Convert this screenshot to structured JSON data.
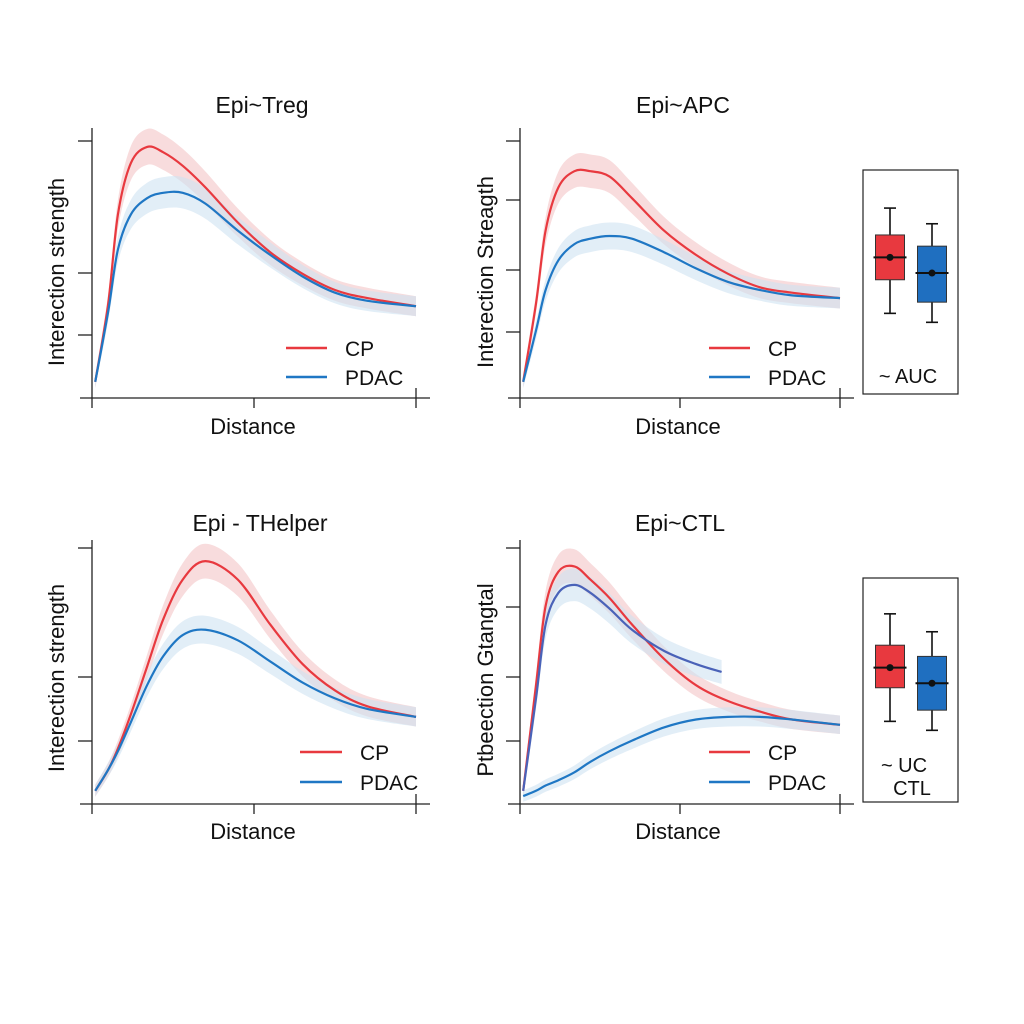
{
  "colors": {
    "cp": "#e8393f",
    "pdac": "#1f77c4",
    "pdac_alt": "#4a62b8",
    "cp_band": "#f4c4c6",
    "pdac_band": "#cfe3f2"
  },
  "chart_data": [
    {
      "type": "line",
      "title": "Epi~Treg",
      "xlabel": "Distance",
      "ylabel": "Interection strength",
      "grid": false,
      "legend": "bottom-right",
      "x": [
        0.01,
        0.05,
        0.08,
        0.12,
        0.17,
        0.22,
        0.28,
        0.35,
        0.45,
        0.55,
        0.65,
        0.75,
        0.85,
        1.0
      ],
      "series": [
        {
          "name": "CP",
          "color": "#e8393f",
          "values": [
            0.06,
            0.35,
            0.68,
            0.87,
            0.93,
            0.91,
            0.86,
            0.78,
            0.65,
            0.54,
            0.46,
            0.4,
            0.37,
            0.34
          ]
        },
        {
          "name": "PDAC",
          "color": "#1f77c4",
          "values": [
            0.06,
            0.32,
            0.55,
            0.68,
            0.74,
            0.76,
            0.76,
            0.72,
            0.62,
            0.53,
            0.45,
            0.39,
            0.36,
            0.34
          ]
        }
      ]
    },
    {
      "type": "line",
      "title": "Epi~APC",
      "xlabel": "Distance",
      "ylabel": "Interection Streagth",
      "grid": false,
      "legend": "bottom-right",
      "x": [
        0.01,
        0.05,
        0.08,
        0.12,
        0.17,
        0.22,
        0.28,
        0.35,
        0.45,
        0.55,
        0.65,
        0.75,
        0.85,
        1.0
      ],
      "series": [
        {
          "name": "CP",
          "color": "#e8393f",
          "values": [
            0.06,
            0.35,
            0.62,
            0.78,
            0.84,
            0.84,
            0.82,
            0.74,
            0.62,
            0.53,
            0.46,
            0.41,
            0.39,
            0.37
          ]
        },
        {
          "name": "PDAC",
          "color": "#1f77c4",
          "values": [
            0.06,
            0.25,
            0.4,
            0.51,
            0.57,
            0.59,
            0.6,
            0.59,
            0.54,
            0.48,
            0.43,
            0.4,
            0.38,
            0.37
          ]
        }
      ]
    },
    {
      "type": "line",
      "title": "Epi - THelper",
      "xlabel": "Distance",
      "ylabel": "Interection strength",
      "grid": false,
      "legend": "bottom-right",
      "x": [
        0.01,
        0.05,
        0.08,
        0.12,
        0.17,
        0.22,
        0.28,
        0.35,
        0.45,
        0.55,
        0.65,
        0.75,
        0.85,
        1.0
      ],
      "series": [
        {
          "name": "CP",
          "color": "#e8393f",
          "values": [
            0.05,
            0.13,
            0.21,
            0.34,
            0.52,
            0.7,
            0.85,
            0.92,
            0.85,
            0.68,
            0.53,
            0.43,
            0.37,
            0.33
          ]
        },
        {
          "name": "PDAC",
          "color": "#1f77c4",
          "values": [
            0.05,
            0.13,
            0.2,
            0.31,
            0.45,
            0.56,
            0.64,
            0.66,
            0.62,
            0.54,
            0.46,
            0.4,
            0.36,
            0.33
          ]
        }
      ]
    },
    {
      "type": "line",
      "title": "Epi~CTL",
      "xlabel": "Distance",
      "ylabel": "Ptbeection Gtangtal",
      "grid": false,
      "legend": "bottom-right",
      "x": [
        0.01,
        0.05,
        0.08,
        0.12,
        0.17,
        0.22,
        0.28,
        0.35,
        0.45,
        0.55,
        0.65,
        0.75,
        0.85,
        1.0
      ],
      "series": [
        {
          "name": "CP",
          "color": "#e8393f",
          "values": [
            0.05,
            0.45,
            0.75,
            0.88,
            0.9,
            0.85,
            0.78,
            0.68,
            0.55,
            0.45,
            0.39,
            0.35,
            0.32,
            0.3
          ]
        },
        {
          "name": "PDAC",
          "color": "#1f77c4",
          "values": [
            0.03,
            0.05,
            0.07,
            0.09,
            0.12,
            0.16,
            0.2,
            0.24,
            0.29,
            0.32,
            0.33,
            0.33,
            0.32,
            0.3
          ]
        },
        {
          "color": "#4a62b8",
          "x": [
            0.01,
            0.05,
            0.08,
            0.12,
            0.17,
            0.22,
            0.28,
            0.35,
            0.45,
            0.55,
            0.63
          ],
          "values": [
            0.05,
            0.4,
            0.68,
            0.8,
            0.83,
            0.8,
            0.74,
            0.66,
            0.58,
            0.53,
            0.5
          ]
        }
      ]
    },
    {
      "type": "box",
      "label": "~ AUC",
      "boxes": [
        {
          "color": "#e8393f",
          "whislo": 36,
          "q1": 51,
          "median": 61,
          "q3": 71,
          "whishi": 83
        },
        {
          "color": "#1f6fc0",
          "whislo": 32,
          "q1": 41,
          "median": 54,
          "q3": 66,
          "whishi": 76
        }
      ]
    },
    {
      "type": "box",
      "label": "~  UC",
      "label2": "CTL",
      "boxes": [
        {
          "color": "#e8393f",
          "whislo": 36,
          "q1": 51,
          "median": 60,
          "q3": 70,
          "whishi": 84
        },
        {
          "color": "#1f6fc0",
          "whislo": 32,
          "q1": 41,
          "median": 53,
          "q3": 65,
          "whishi": 76
        }
      ]
    }
  ]
}
